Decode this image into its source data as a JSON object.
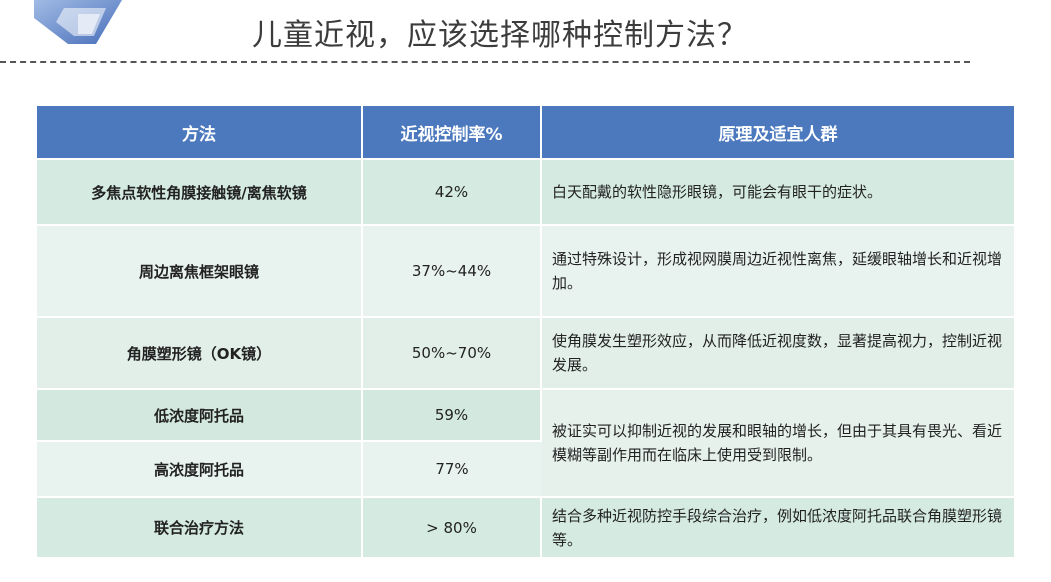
{
  "title": "儿童近视，应该选择哪种控制方法？",
  "colors": {
    "header_bg": "#4c79be",
    "row_green": "#d5ebe2",
    "row_light": "#e8f2ee",
    "highlight_text": "#3a66b3"
  },
  "table": {
    "headers": [
      "方法",
      "近视控制率%",
      "原理及适宜人群"
    ],
    "rows": [
      {
        "method": "多焦点软性角膜接触镜/离焦软镜",
        "rate": "42%",
        "desc": "白天配戴的软性隐形眼镜，可能会有眼干的症状。",
        "highlight": false
      },
      {
        "method": "周边离焦框架眼镜",
        "rate": "37%~44%",
        "desc": "通过特殊设计，形成视网膜周边近视性离焦，延缓眼轴增长和近视增加。",
        "highlight": true
      },
      {
        "method": "角膜塑形镜（OK镜）",
        "rate": "50%~70%",
        "desc": "使角膜发生塑形效应，从而降低近视度数，显著提高视力，控制近视发展。",
        "highlight": true
      },
      {
        "method": "低浓度阿托品",
        "rate": "59%",
        "desc": "被证实可以抑制近视的发展和眼轴的增长，但由于其具有畏光、看近模糊等副作用而在临床上使用受到限制。",
        "highlight": false
      },
      {
        "method": "高浓度阿托品",
        "rate": "77%",
        "highlight": true
      },
      {
        "method": "联合治疗方法",
        "rate": "> 80%",
        "desc": "结合多种近视防控手段综合治疗，例如低浓度阿托品联合角膜塑形镜等。",
        "highlight": false
      }
    ]
  }
}
